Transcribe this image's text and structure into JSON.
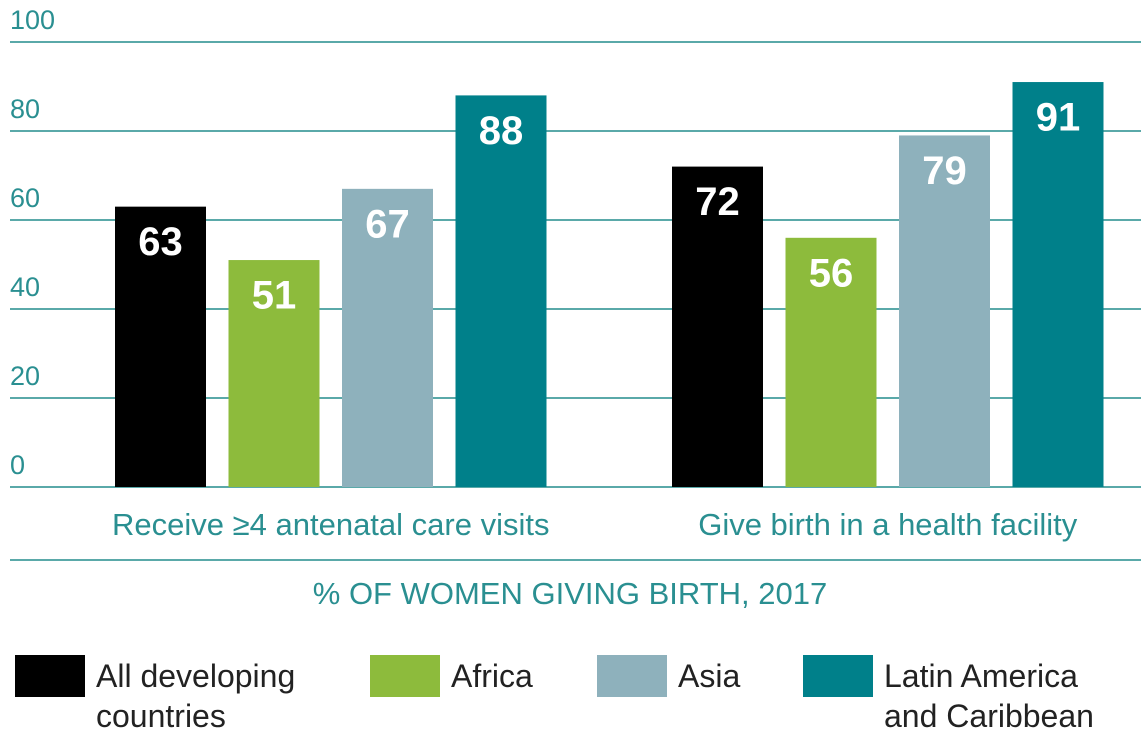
{
  "chart_data": {
    "type": "bar",
    "categories": [
      "Receive ≥4 antenatal care visits",
      "Give birth in a health facility"
    ],
    "series": [
      {
        "name": "All developing countries",
        "color": "#000000",
        "values": [
          63,
          72
        ]
      },
      {
        "name": "Africa",
        "color": "#8dbb3c",
        "values": [
          51,
          56
        ]
      },
      {
        "name": "Asia",
        "color": "#8eb1bc",
        "values": [
          67,
          79
        ]
      },
      {
        "name": "Latin America and Caribbean",
        "color": "#00808a",
        "values": [
          88,
          91
        ]
      }
    ],
    "x_label": "% OF WOMEN GIVING BIRTH, 2017",
    "ylim": [
      0,
      100
    ],
    "yticks": [
      0,
      20,
      40,
      60,
      80,
      100
    ],
    "grid": true
  }
}
